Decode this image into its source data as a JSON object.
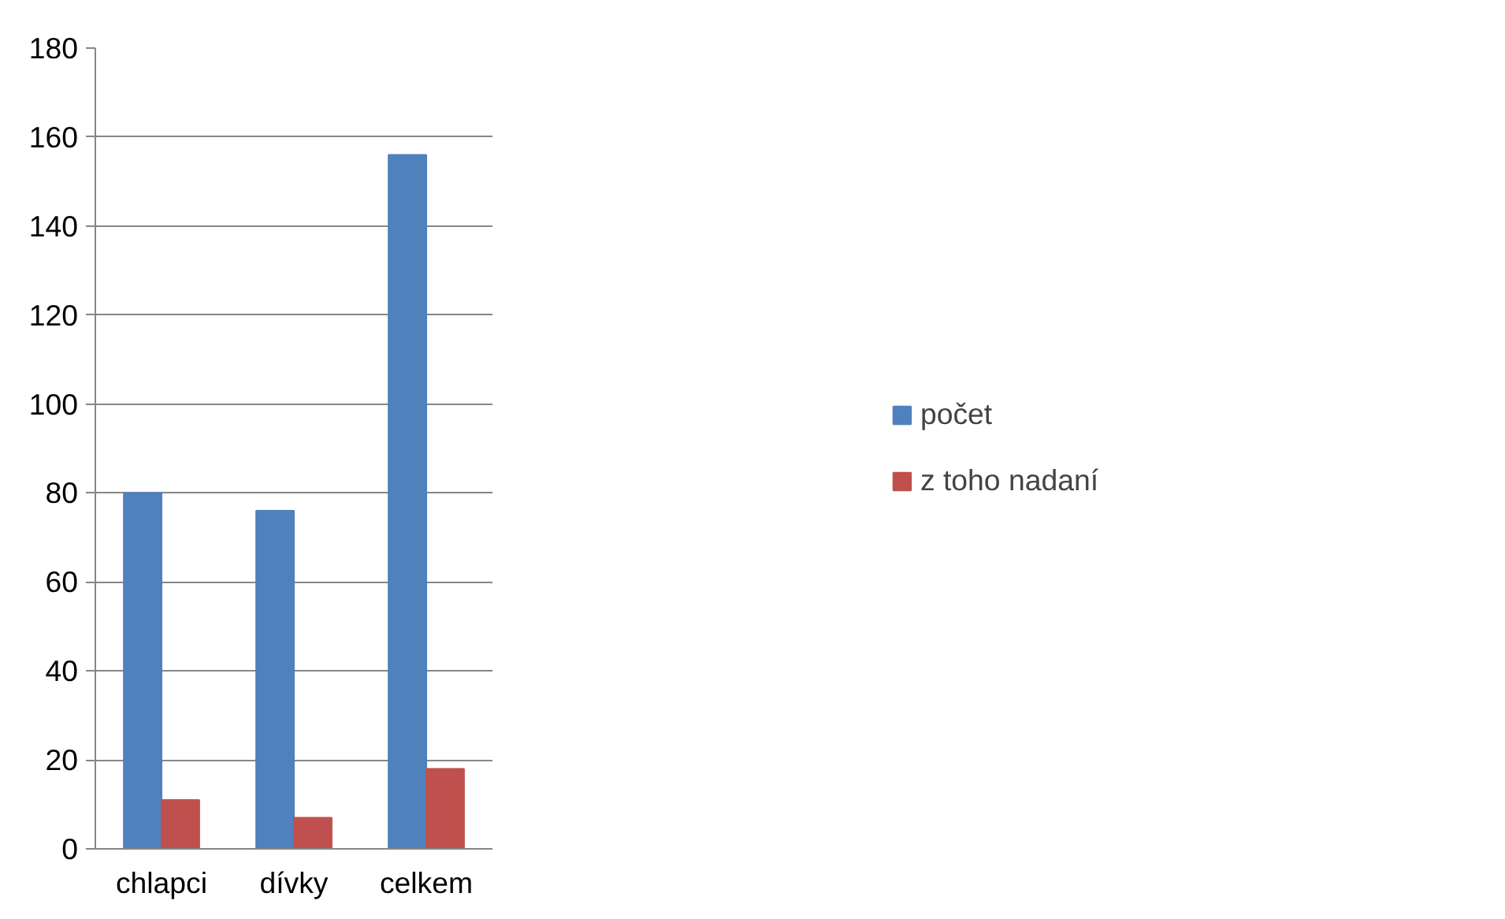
{
  "chart_data": {
    "type": "bar",
    "categories": [
      "chlapci",
      "dívky",
      "celkem"
    ],
    "series": [
      {
        "name": "počet",
        "color": "#4f81bd",
        "values": [
          80,
          76,
          156
        ]
      },
      {
        "name": "z toho nadaní",
        "color": "#c0504d",
        "values": [
          11,
          7,
          18
        ]
      }
    ],
    "ylim": [
      0,
      180
    ],
    "yticks": [
      0,
      20,
      40,
      60,
      80,
      100,
      120,
      140,
      160,
      180
    ],
    "grid": "y",
    "legend": "right"
  }
}
